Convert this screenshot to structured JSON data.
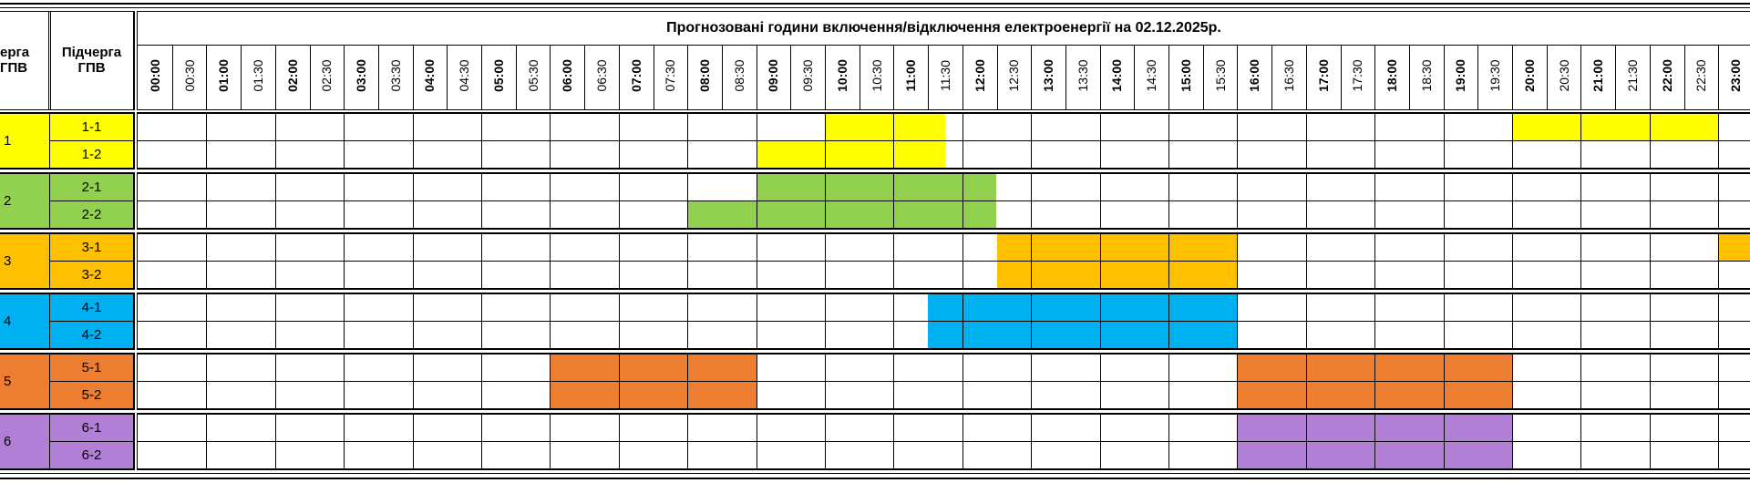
{
  "title": "Прогнозовані години включення/відключення електроенергії на 02.12.2025р.",
  "header": {
    "queue_label": "ерга\nГПВ",
    "subqueue_label": "Підчерга\nГПВ"
  },
  "time_slots": [
    "00:00",
    "00:30",
    "01:00",
    "01:30",
    "02:00",
    "02:30",
    "03:00",
    "03:30",
    "04:00",
    "04:30",
    "05:00",
    "05:30",
    "06:00",
    "06:30",
    "07:00",
    "07:30",
    "08:00",
    "08:30",
    "09:00",
    "09:30",
    "10:00",
    "10:30",
    "11:00",
    "11:30",
    "12:00",
    "12:30",
    "13:00",
    "13:30",
    "14:00",
    "14:30",
    "15:00",
    "15:30",
    "16:00",
    "16:30",
    "17:00",
    "17:30",
    "18:00",
    "18:30",
    "19:00",
    "19:30",
    "20:00",
    "20:30",
    "21:00",
    "21:30",
    "22:00",
    "22:30",
    "23:00"
  ],
  "groups": [
    {
      "queue": "1",
      "color": "#ffff00",
      "subgroups": [
        {
          "label": "1-1",
          "outages": [
            [
              20,
              23.5
            ],
            [
              40,
              46
            ]
          ]
        },
        {
          "label": "1-2",
          "outages": [
            [
              18,
              23.5
            ]
          ]
        }
      ]
    },
    {
      "queue": "2",
      "color": "#92d050",
      "subgroups": [
        {
          "label": "2-1",
          "outages": [
            [
              18,
              25
            ]
          ]
        },
        {
          "label": "2-2",
          "outages": [
            [
              16,
              25
            ]
          ]
        }
      ]
    },
    {
      "queue": "3",
      "color": "#ffc000",
      "subgroups": [
        {
          "label": "3-1",
          "outages": [
            [
              25,
              32
            ],
            [
              46,
              47
            ]
          ]
        },
        {
          "label": "3-2",
          "outages": [
            [
              25,
              32
            ]
          ]
        }
      ]
    },
    {
      "queue": "4",
      "color": "#00b0f0",
      "subgroups": [
        {
          "label": "4-1",
          "outages": [
            [
              23,
              32
            ]
          ]
        },
        {
          "label": "4-2",
          "outages": [
            [
              23,
              32
            ]
          ]
        }
      ]
    },
    {
      "queue": "5",
      "color": "#ed7d31",
      "subgroups": [
        {
          "label": "5-1",
          "outages": [
            [
              12,
              18
            ],
            [
              32,
              40
            ]
          ]
        },
        {
          "label": "5-2",
          "outages": [
            [
              12,
              18
            ],
            [
              32,
              40
            ]
          ]
        }
      ]
    },
    {
      "queue": "6",
      "color": "#b27fd6",
      "subgroups": [
        {
          "label": "6-1",
          "outages": [
            [
              32,
              40
            ]
          ]
        },
        {
          "label": "6-2",
          "outages": [
            [
              32,
              40
            ]
          ]
        }
      ]
    }
  ]
}
